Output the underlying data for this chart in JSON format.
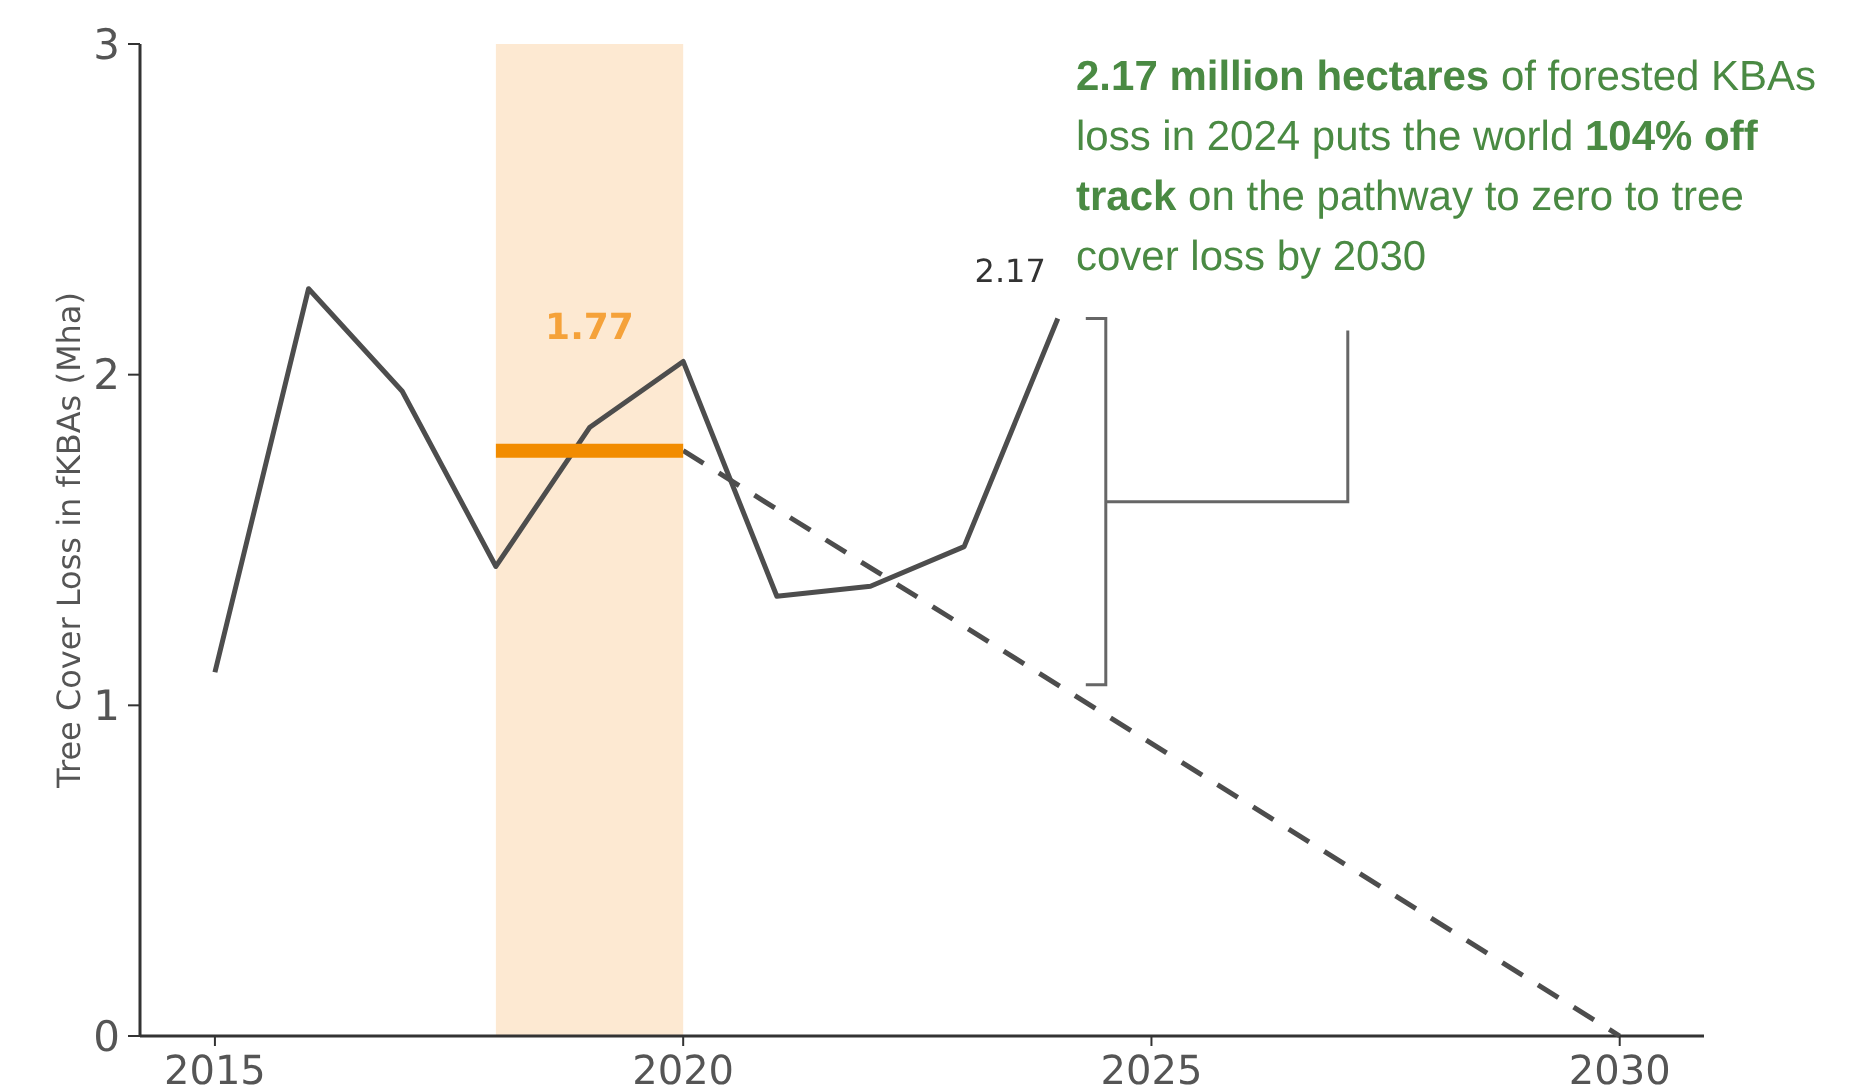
{
  "chart_data": {
    "type": "line",
    "ylabel": "Tree Cover Loss in fKBAs (Mha)",
    "xlim": [
      2014.2,
      2030.9
    ],
    "ylim": [
      0,
      3
    ],
    "xticks": [
      2015,
      2020,
      2025,
      2030
    ],
    "yticks": [
      0,
      1,
      2,
      3
    ],
    "grid": false,
    "marker": "none",
    "series": [
      {
        "color": "#4d4d4d",
        "line_style": "solid",
        "x": [
          2015,
          2016,
          2017,
          2018,
          2019,
          2020,
          2021,
          2022,
          2023,
          2024
        ],
        "values": [
          1.1,
          2.26,
          1.95,
          1.42,
          1.84,
          2.04,
          1.33,
          1.36,
          1.48,
          2.17
        ]
      },
      {
        "color": "#4d4d4d",
        "line_style": "dashed",
        "x": [
          2020,
          2030
        ],
        "values": [
          1.77,
          0
        ]
      },
      {
        "color": "#f28c00",
        "line_style": "solid",
        "x": [
          2018,
          2020
        ],
        "values": [
          1.77,
          1.77
        ]
      }
    ],
    "bands": [
      {
        "axis": "x",
        "from": 2018,
        "to": 2020,
        "color": "#fde9d2"
      }
    ],
    "annotations": [
      "1.77",
      {
        "text": "2.17",
        "x": 2024,
        "y": 2.17
      },
      "2.17 million hectares",
      "of forested KBAs loss in 2024 puts the world",
      "104% off track",
      "on the pathway to zero to tree cover loss by 2030"
    ]
  }
}
